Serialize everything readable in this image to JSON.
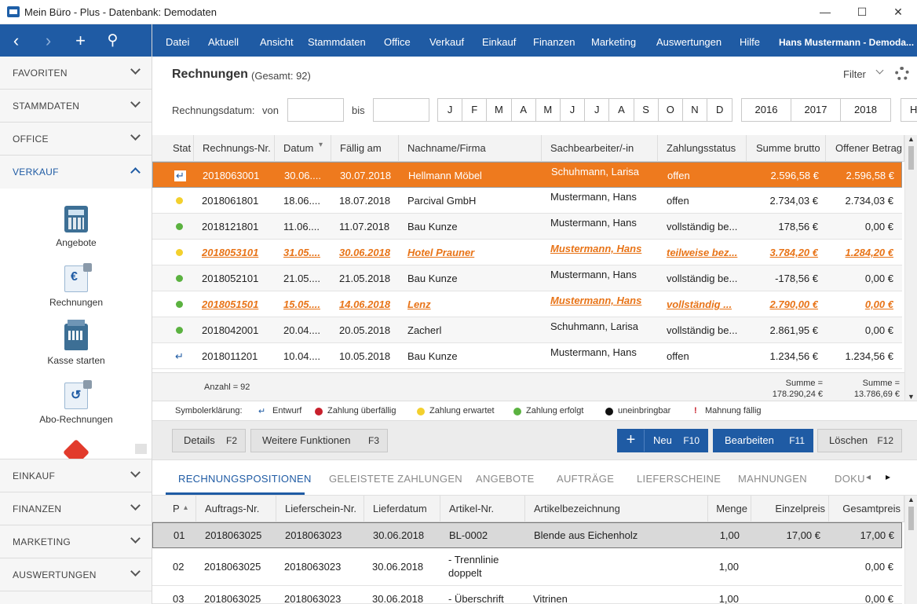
{
  "window": {
    "title": "Mein Büro - Plus - Datenbank: Demodaten",
    "minimize": "—",
    "maximize": "☐",
    "close": "✕"
  },
  "nav": {
    "back": "‹",
    "forward": "›",
    "add": "+",
    "search": "⚲"
  },
  "sidebar": {
    "sections_top": [
      "FAVORITEN",
      "STAMMDATEN",
      "OFFICE"
    ],
    "open_section": "VERKAUF",
    "items": [
      "Angebote",
      "Rechnungen",
      "Kasse starten",
      "Abo-Rechnungen"
    ],
    "sections_bottom": [
      "EINKAUF",
      "FINANZEN",
      "MARKETING",
      "AUSWERTUNGEN"
    ]
  },
  "menu": {
    "items": [
      "Datei",
      "Aktuell",
      "Ansicht",
      "Stammdaten",
      "Office",
      "Verkauf",
      "Einkauf",
      "Finanzen",
      "Marketing",
      "Auswertungen",
      "Hilfe"
    ],
    "user": "Hans Mustermann - Demoda..."
  },
  "header": {
    "title": "Rechnungen",
    "count": "(Gesamt: 92)",
    "filter": "Filter"
  },
  "date_filter": {
    "label": "Rechnungsdatum:",
    "von": "von",
    "bis": "bis",
    "von_value": "",
    "bis_value": "",
    "months": [
      "J",
      "F",
      "M",
      "A",
      "M",
      "J",
      "J",
      "A",
      "S",
      "O",
      "N",
      "D"
    ],
    "years": [
      "2016",
      "2017",
      "2018"
    ],
    "year_more": "H"
  },
  "grid": {
    "columns": [
      "Stat",
      "Rechnungs-Nr.",
      "Datum",
      "Fällig am",
      "Nachname/Firma",
      "Sachbearbeiter/-in",
      "Zahlungsstatus",
      "Summe brutto",
      "Offener Betrag"
    ],
    "rows": [
      {
        "status": "draft",
        "nr": "2018063001",
        "datum": "30.06....",
        "faellig": "30.07.2018",
        "firma": "Hellmann Möbel",
        "sb": "Schuhmann, Larisa",
        "zs": "offen",
        "summe": "2.596,58 €",
        "offen": "2.596,58 €",
        "style": "sel"
      },
      {
        "status": "yellow",
        "nr": "2018061801",
        "datum": "18.06....",
        "faellig": "18.07.2018",
        "firma": "Parcival GmbH",
        "sb": "Mustermann, Hans",
        "zs": "offen",
        "summe": "2.734,03 €",
        "offen": "2.734,03 €",
        "style": ""
      },
      {
        "status": "green",
        "nr": "2018121801",
        "datum": "11.06....",
        "faellig": "11.07.2018",
        "firma": "Bau Kunze",
        "sb": "Mustermann, Hans",
        "zs": "vollständig be...",
        "summe": "178,56 €",
        "offen": "0,00 €",
        "style": "alt"
      },
      {
        "status": "yellow",
        "nr": "2018053101",
        "datum": "31.05....",
        "faellig": "30.06.2018",
        "firma": "Hotel Prauner",
        "sb": "Mustermann, Hans",
        "zs": "teilweise bez...",
        "summe": "3.784,20 €",
        "offen": "1.284,20 €",
        "style": "hl"
      },
      {
        "status": "green",
        "nr": "2018052101",
        "datum": "21.05....",
        "faellig": "21.05.2018",
        "firma": "Bau Kunze",
        "sb": "Mustermann, Hans",
        "zs": "vollständig be...",
        "summe": "-178,56 €",
        "offen": "0,00 €",
        "style": "alt"
      },
      {
        "status": "green",
        "nr": "2018051501",
        "datum": "15.05....",
        "faellig": "14.06.2018",
        "firma": "Lenz",
        "sb": "Mustermann, Hans",
        "zs": "vollständig ...",
        "summe": "2.790,00 €",
        "offen": "0,00 €",
        "style": "hl"
      },
      {
        "status": "green",
        "nr": "2018042001",
        "datum": "20.04....",
        "faellig": "20.05.2018",
        "firma": "Zacherl",
        "sb": "Schuhmann, Larisa",
        "zs": "vollständig be...",
        "summe": "2.861,95 €",
        "offen": "0,00 €",
        "style": "alt"
      },
      {
        "status": "draft",
        "nr": "2018011201",
        "datum": "10.04....",
        "faellig": "10.05.2018",
        "firma": "Bau Kunze",
        "sb": "Mustermann, Hans",
        "zs": "offen",
        "summe": "1.234,56 €",
        "offen": "1.234,56 €",
        "style": ""
      }
    ],
    "anzahl": "Anzahl = 92",
    "sum_label": "Summe =",
    "sum_brutto": "178.290,24 €",
    "sum_offen": "13.786,69 €"
  },
  "legend": {
    "title": "Symbolerklärung:",
    "entwurf": "Entwurf",
    "ueberfaellig": "Zahlung überfällig",
    "erwartet": "Zahlung erwartet",
    "erfolgt": "Zahlung erfolgt",
    "uneinbringbar": "uneinbringbar",
    "mahnung": "Mahnung fällig"
  },
  "actions": {
    "details": "Details",
    "details_key": "F2",
    "weitere": "Weitere Funktionen",
    "weitere_key": "F3",
    "neu": "Neu",
    "neu_key": "F10",
    "bearbeiten": "Bearbeiten",
    "bearbeiten_key": "F11",
    "loeschen": "Löschen",
    "loeschen_key": "F12"
  },
  "tabs": [
    "RECHNUNGSPOSITIONEN",
    "GELEISTETE ZAHLUNGEN",
    "ANGEBOTE",
    "AUFTRÄGE",
    "LIEFERSCHEINE",
    "MAHNUNGEN",
    "DOKU"
  ],
  "positions": {
    "columns": [
      "P",
      "Auftrags-Nr.",
      "Lieferschein-Nr.",
      "Lieferdatum",
      "Artikel-Nr.",
      "Artikelbezeichnung",
      "Menge",
      "Einzelpreis",
      "Gesamtpreis"
    ],
    "rows": [
      {
        "p": "01",
        "auftrag": "2018063025",
        "lieferschein": "2018063023",
        "datum": "30.06.2018",
        "artikel": "BL-0002",
        "bez": "Blende aus Eichenholz",
        "menge": "1,00",
        "einzel": "17,00 €",
        "gesamt": "17,00 €"
      },
      {
        "p": "02",
        "auftrag": "2018063025",
        "lieferschein": "2018063023",
        "datum": "30.06.2018",
        "artikel": "- Trennlinie doppelt",
        "bez": "",
        "menge": "1,00",
        "einzel": "",
        "gesamt": "0,00 €"
      },
      {
        "p": "03",
        "auftrag": "2018063025",
        "lieferschein": "2018063023",
        "datum": "30.06.2018",
        "artikel": "- Überschrift",
        "bez": "Vitrinen",
        "menge": "1,00",
        "einzel": "",
        "gesamt": "0,00 €"
      }
    ]
  },
  "colors": {
    "brand": "#1f5ba4",
    "selection": "#ee7a1e",
    "overdue": "#c8202c",
    "expected": "#f3d02d",
    "paid": "#5bb240",
    "bad": "#111111",
    "dunning": "#c8202c"
  },
  "icons": {
    "draft": "↵",
    "dunning": "!",
    "tab_prev": "◂",
    "tab_next": "▸"
  }
}
